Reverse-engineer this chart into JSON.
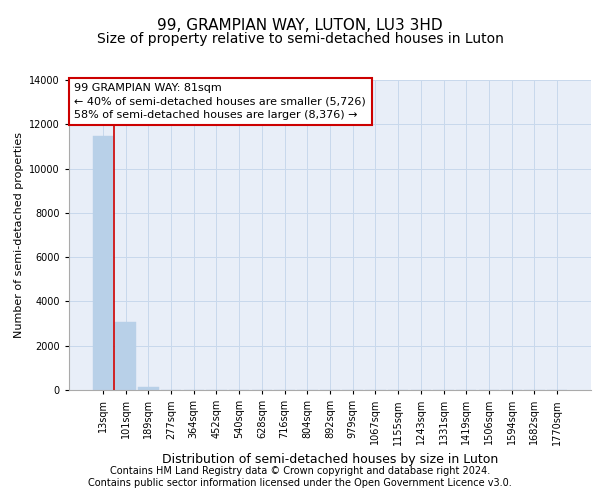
{
  "title": "99, GRAMPIAN WAY, LUTON, LU3 3HD",
  "subtitle": "Size of property relative to semi-detached houses in Luton",
  "xlabel": "Distribution of semi-detached houses by size in Luton",
  "ylabel": "Number of semi-detached properties",
  "categories": [
    "13sqm",
    "101sqm",
    "189sqm",
    "277sqm",
    "364sqm",
    "452sqm",
    "540sqm",
    "628sqm",
    "716sqm",
    "804sqm",
    "892sqm",
    "979sqm",
    "1067sqm",
    "1155sqm",
    "1243sqm",
    "1331sqm",
    "1419sqm",
    "1506sqm",
    "1594sqm",
    "1682sqm",
    "1770sqm"
  ],
  "values": [
    11450,
    3050,
    150,
    0,
    0,
    0,
    0,
    0,
    0,
    0,
    0,
    0,
    0,
    0,
    0,
    0,
    0,
    0,
    0,
    0,
    0
  ],
  "bar_color": "#b8d0e8",
  "bar_edge_color": "#b8d0e8",
  "vline_x": 0.5,
  "vline_color": "#cc0000",
  "annotation_text": "99 GRAMPIAN WAY: 81sqm\n← 40% of semi-detached houses are smaller (5,726)\n58% of semi-detached houses are larger (8,376) →",
  "annotation_box_facecolor": "#ffffff",
  "annotation_box_edgecolor": "#cc0000",
  "ylim": [
    0,
    14000
  ],
  "yticks": [
    0,
    2000,
    4000,
    6000,
    8000,
    10000,
    12000,
    14000
  ],
  "grid_color": "#c8d8ec",
  "background_color": "#e8eef8",
  "footer_line1": "Contains HM Land Registry data © Crown copyright and database right 2024.",
  "footer_line2": "Contains public sector information licensed under the Open Government Licence v3.0.",
  "title_fontsize": 11,
  "subtitle_fontsize": 10,
  "xlabel_fontsize": 9,
  "ylabel_fontsize": 8,
  "tick_fontsize": 7,
  "annotation_fontsize": 8,
  "footer_fontsize": 7
}
